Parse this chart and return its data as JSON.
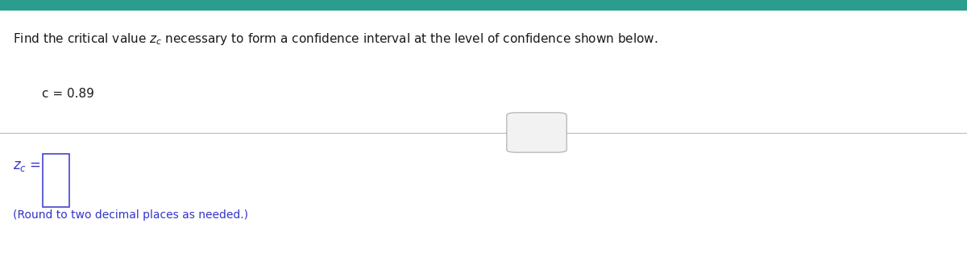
{
  "top_bar_color": "#2a9d8f",
  "background_color": "#ffffff",
  "title_text": "Find the critical value $z_c$ necessary to form a confidence interval at the level of confidence shown below.",
  "confidence_text": "c = 0.89",
  "divider_color": "#bbbbbb",
  "text_color_black": "#1a1a1a",
  "text_color_blue": "#3333cc",
  "input_box_color": "#4444cc",
  "round_text": "(Round to two decimal places as needed.)"
}
